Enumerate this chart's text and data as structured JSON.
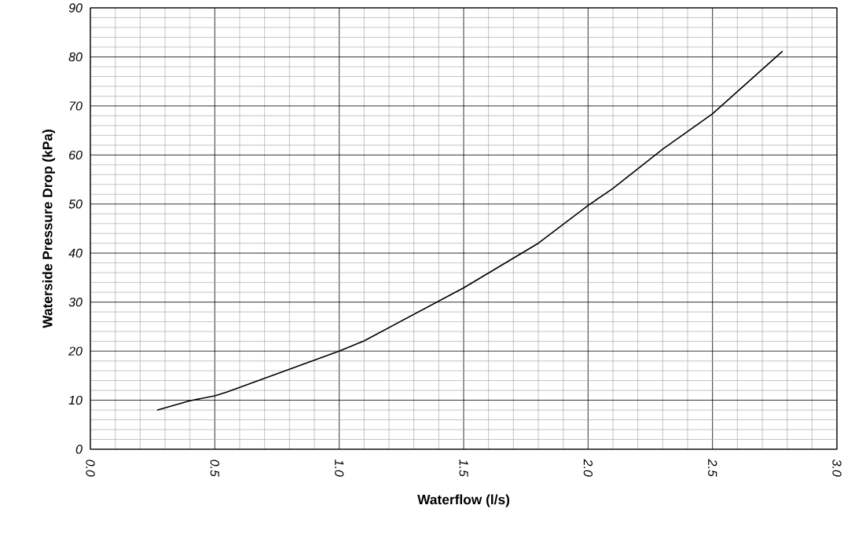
{
  "chart_data": {
    "type": "line",
    "xlabel": "Waterflow (l/s)",
    "ylabel": "Waterside Pressure Drop (kPa)",
    "x": [
      0.27,
      0.4,
      0.5,
      0.55,
      1.0,
      1.1,
      1.5,
      1.8,
      2.0,
      2.1,
      2.3,
      2.5,
      2.78
    ],
    "values": [
      8.0,
      9.9,
      10.9,
      11.7,
      20.0,
      22.1,
      32.9,
      42.0,
      49.7,
      53.2,
      61.2,
      68.4,
      81.1
    ],
    "color": "#000000",
    "xlim": [
      0,
      3.0
    ],
    "ylim": [
      0,
      90
    ],
    "xticks": [
      {
        "value": 0,
        "label": "0.0"
      },
      {
        "value": 0.5,
        "label": "0.5"
      },
      {
        "value": 1.0,
        "label": "1.0"
      },
      {
        "value": 1.5,
        "label": "1.5"
      },
      {
        "value": 2.0,
        "label": "2.0"
      },
      {
        "value": 2.5,
        "label": "2.5"
      },
      {
        "value": 3.0,
        "label": "3.0"
      }
    ],
    "yticks": [
      0,
      10,
      20,
      30,
      40,
      50,
      60,
      70,
      80,
      90
    ],
    "grid": true
  }
}
